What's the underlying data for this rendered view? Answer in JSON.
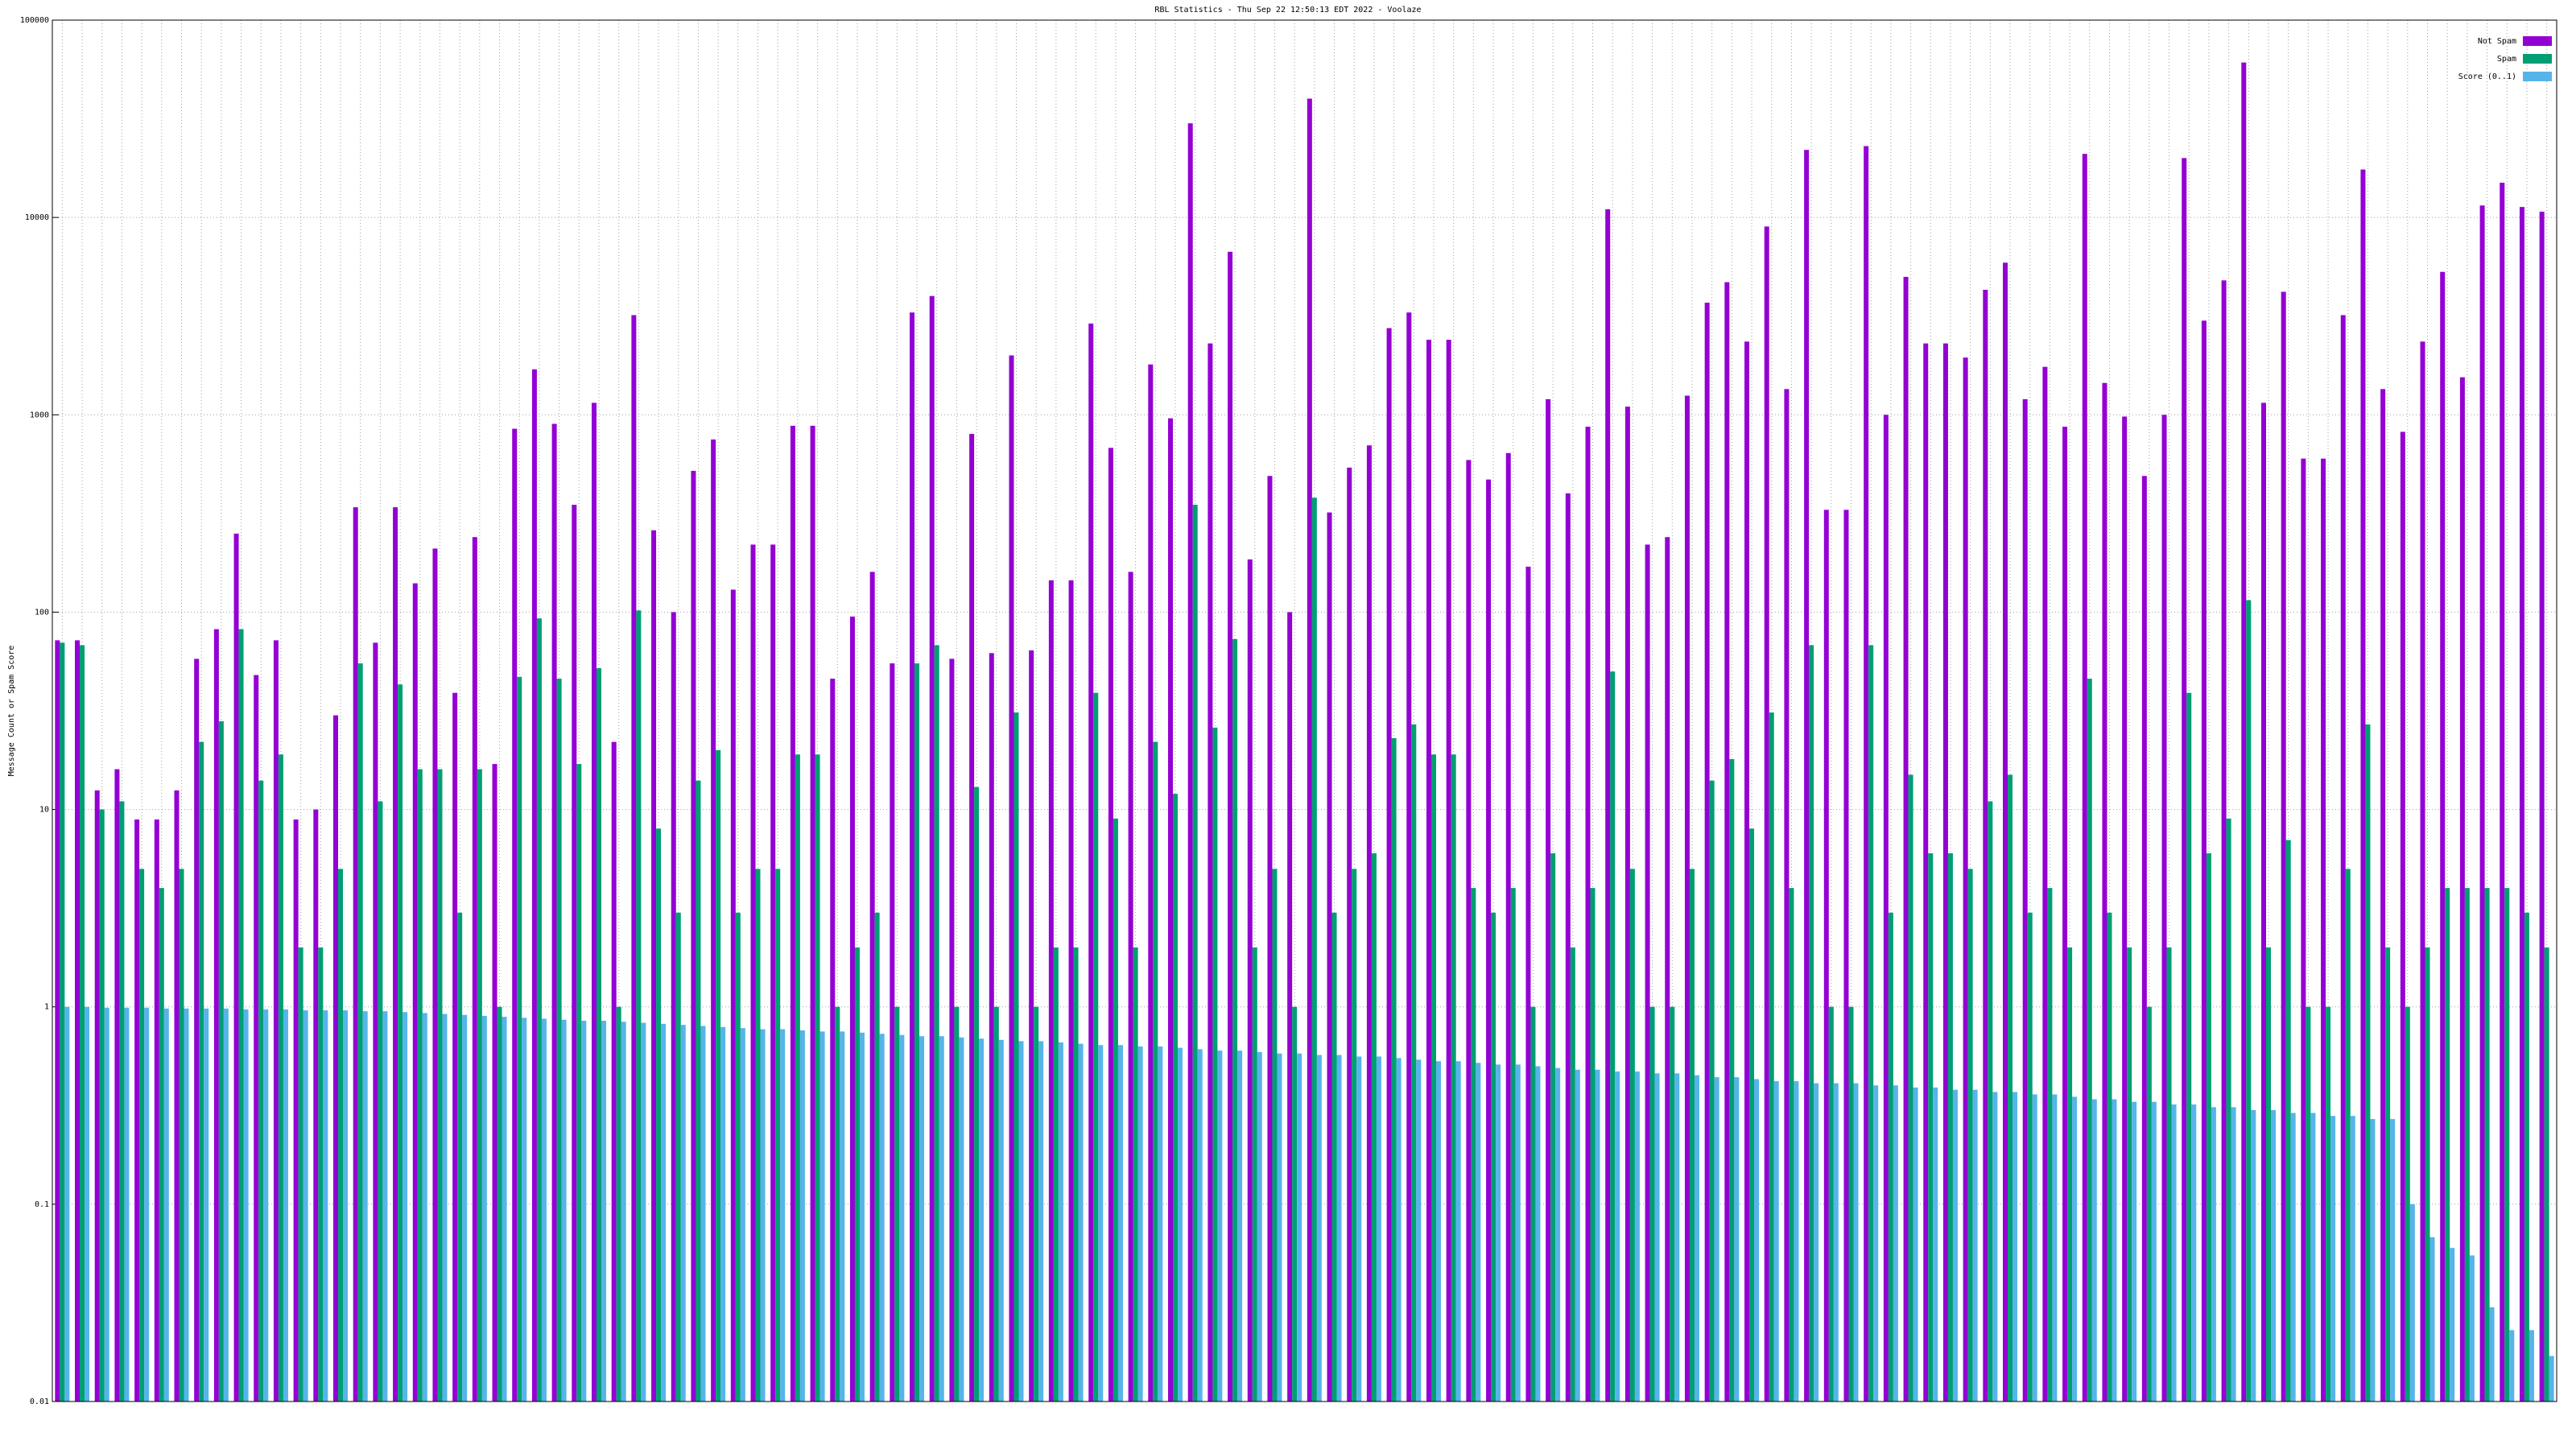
{
  "chart_data": {
    "type": "bar",
    "title": "RBL Statistics - Thu Sep 22 12:50:13 EDT 2022 - Voolaze",
    "y_label": "Message Count or Spam Score",
    "log_scale": true,
    "grid": true,
    "legend": "top-right",
    "ylim": [
      0.01,
      100000
    ],
    "yticks": [
      0.01,
      0.1,
      1,
      10,
      100,
      1000,
      10000,
      100000
    ],
    "categories": [
      null,
      null,
      null,
      null,
      null,
      null,
      null,
      null,
      null,
      null,
      null,
      null,
      null,
      null,
      null,
      null,
      null,
      null,
      null,
      null,
      null,
      null,
      null,
      null,
      null,
      null,
      null,
      null,
      null,
      null,
      null,
      null,
      null,
      null,
      null,
      null,
      null,
      null,
      null,
      null,
      null,
      null,
      null,
      null,
      null,
      null,
      null,
      null,
      null,
      null,
      null,
      null,
      null,
      null,
      null,
      null,
      null,
      null,
      null,
      null,
      null,
      null,
      null,
      null,
      null,
      null,
      null,
      null,
      null,
      null,
      null,
      null,
      null,
      null,
      null,
      null,
      null,
      null,
      null,
      null,
      null,
      null,
      null,
      null,
      null,
      null,
      null,
      null,
      null,
      null,
      null,
      null,
      null,
      null,
      null,
      null,
      null,
      null,
      null,
      null,
      null,
      null,
      null,
      null,
      null,
      null,
      null,
      null,
      null,
      null,
      null,
      null,
      null,
      null,
      null,
      null,
      null,
      null,
      null,
      null,
      null,
      null,
      null,
      null,
      null,
      null
    ],
    "series": [
      {
        "name": "Not Spam",
        "color": "#9400d3",
        "values": [
          72,
          72,
          12.5,
          16,
          8.9,
          8.9,
          12.5,
          58,
          82,
          250,
          48,
          72,
          8.9,
          10,
          30,
          340,
          70,
          340,
          140,
          210,
          39,
          240,
          17,
          850,
          1700,
          900,
          350,
          1150,
          22,
          3200,
          260,
          100,
          520,
          750,
          130,
          220,
          220,
          880,
          880,
          46,
          95,
          160,
          55,
          3300,
          4000,
          58,
          800,
          62,
          2000,
          64,
          145,
          145,
          2900,
          680,
          160,
          1800,
          960,
          30000,
          2300,
          6700,
          185,
          490,
          100,
          40000,
          320,
          540,
          700,
          2750,
          3300,
          2400,
          2400,
          590,
          470,
          640,
          170,
          1200,
          400,
          870,
          11000,
          1100,
          220,
          240,
          1250,
          3700,
          4700,
          2350,
          9000,
          1350,
          22000,
          330,
          330,
          23000,
          1000,
          5000,
          2300,
          2300,
          1950,
          4300,
          5900,
          1200,
          1750,
          870,
          21000,
          1450,
          980,
          490,
          1000,
          20000,
          3000,
          4800,
          61000,
          1150,
          4200,
          600,
          600,
          3200,
          17500,
          1350,
          820,
          2350,
          5300,
          1550,
          11500,
          15000,
          11300,
          10700
        ]
      },
      {
        "name": "Spam",
        "color": "#009e73",
        "values": [
          70,
          68,
          10,
          11,
          5,
          4,
          5,
          22,
          28,
          82,
          14,
          19,
          2,
          2,
          5,
          55,
          11,
          43,
          16,
          16,
          3,
          16,
          1,
          47,
          93,
          46,
          17,
          52,
          1,
          102,
          8,
          3,
          14,
          20,
          3,
          5,
          5,
          19,
          19,
          1,
          2,
          3,
          1,
          55,
          68,
          1,
          13,
          1,
          31,
          1,
          2,
          2,
          39,
          9,
          2,
          22,
          12,
          350,
          26,
          73,
          2,
          5,
          1,
          380,
          3,
          5,
          6,
          23,
          27,
          19,
          19,
          4,
          3,
          4,
          1,
          6,
          2,
          4,
          50,
          5,
          1,
          1,
          5,
          14,
          18,
          8,
          31,
          4,
          68,
          1,
          1,
          68,
          3,
          15,
          6,
          6,
          5,
          11,
          15,
          3,
          4,
          2,
          46,
          3,
          2,
          1,
          2,
          39,
          6,
          9,
          115,
          2,
          7,
          1,
          1,
          5,
          27,
          2,
          1,
          2,
          4,
          4,
          4,
          4,
          3,
          2
        ]
      },
      {
        "name": "Score (0..1)",
        "color": "#56b4e9",
        "values": [
          1,
          1,
          0.99,
          0.99,
          0.99,
          0.98,
          0.98,
          0.98,
          0.98,
          0.97,
          0.97,
          0.97,
          0.96,
          0.96,
          0.96,
          0.95,
          0.95,
          0.94,
          0.93,
          0.92,
          0.91,
          0.9,
          0.89,
          0.88,
          0.87,
          0.86,
          0.85,
          0.85,
          0.84,
          0.83,
          0.82,
          0.81,
          0.8,
          0.79,
          0.78,
          0.77,
          0.77,
          0.76,
          0.75,
          0.75,
          0.74,
          0.73,
          0.72,
          0.71,
          0.71,
          0.7,
          0.69,
          0.68,
          0.67,
          0.67,
          0.66,
          0.65,
          0.64,
          0.64,
          0.63,
          0.63,
          0.62,
          0.61,
          0.6,
          0.6,
          0.59,
          0.58,
          0.58,
          0.57,
          0.57,
          0.56,
          0.56,
          0.55,
          0.54,
          0.53,
          0.53,
          0.52,
          0.51,
          0.51,
          0.5,
          0.49,
          0.48,
          0.48,
          0.47,
          0.47,
          0.46,
          0.46,
          0.45,
          0.44,
          0.44,
          0.43,
          0.42,
          0.42,
          0.41,
          0.41,
          0.41,
          0.4,
          0.4,
          0.39,
          0.39,
          0.38,
          0.38,
          0.37,
          0.37,
          0.36,
          0.36,
          0.35,
          0.34,
          0.34,
          0.33,
          0.33,
          0.32,
          0.32,
          0.31,
          0.31,
          0.3,
          0.3,
          0.29,
          0.29,
          0.28,
          0.28,
          0.27,
          0.27,
          0.1,
          0.068,
          0.06,
          0.055,
          0.03,
          0.023,
          0.023,
          0.017
        ]
      }
    ]
  }
}
